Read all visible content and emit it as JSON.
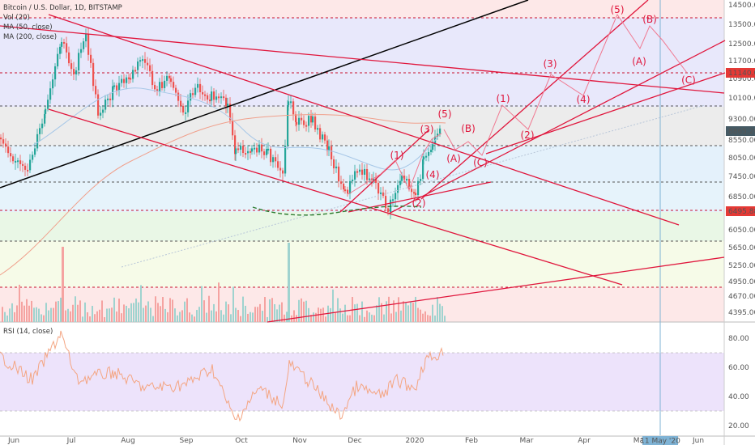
{
  "header": {
    "title": "Bitcoin / U.S. Dollar, 1D, BITSTAMP",
    "vol": "Vol (20)",
    "ma50": "MA (50, close)",
    "ma200": "MA (200, close)"
  },
  "rsi_label": "RSI (14, close)",
  "colors": {
    "candle_up": "#26a69a",
    "candle_down": "#ef5350",
    "annot": "#e0163c",
    "trend_black": "#000000",
    "rsi": "#f4a582"
  },
  "price_axis": [
    "14500.00",
    "13500.00",
    "12500.00",
    "11700.00",
    "10900.00",
    "10100.00",
    "9300.00",
    "8550.00",
    "8050.00",
    "7450.00",
    "6850.00",
    "6050.00",
    "5650.00",
    "5250.00",
    "4950.00",
    "4670.00",
    "4395.00"
  ],
  "price_tags": {
    "current": "8865.26",
    "upper": "11140.06",
    "lower": "6495.88"
  },
  "rsi_axis": [
    "80.00",
    "60.00",
    "40.00",
    "20.00"
  ],
  "time_axis": [
    "Jun",
    "Jul",
    "Aug",
    "Sep",
    "Oct",
    "Nov",
    "Dec",
    "2020",
    "Feb",
    "Mar",
    "Apr",
    "May",
    "Jun"
  ],
  "date_marker": "11 May '20",
  "waves": {
    "w1": "(1)",
    "w2": "(2)",
    "w3": "(3)",
    "w4": "(4)",
    "w5": "(5)",
    "A": "(A)",
    "B": "(B)",
    "C": "(C)"
  },
  "chart_data": {
    "type": "candlestick",
    "title": "Bitcoin / U.S. Dollar, 1D, BITSTAMP",
    "xlabel": "",
    "ylabel": "",
    "x_range": [
      "2019-06",
      "2020-06"
    ],
    "ylim": [
      4395,
      14500
    ],
    "log_scale": true,
    "last_price": 8865.26,
    "levels": [
      11140.06,
      6495.88
    ],
    "approx_close_path": [
      {
        "date": "2019-06-01",
        "close": 8550
      },
      {
        "date": "2019-06-26",
        "close": 12900
      },
      {
        "date": "2019-07-10",
        "close": 12000
      },
      {
        "date": "2019-07-20",
        "close": 10600
      },
      {
        "date": "2019-08-06",
        "close": 11800
      },
      {
        "date": "2019-08-29",
        "close": 9500
      },
      {
        "date": "2019-09-20",
        "close": 10100
      },
      {
        "date": "2019-09-25",
        "close": 8500
      },
      {
        "date": "2019-10-20",
        "close": 8200
      },
      {
        "date": "2019-10-26",
        "close": 9500
      },
      {
        "date": "2019-11-10",
        "close": 8800
      },
      {
        "date": "2019-11-25",
        "close": 7100
      },
      {
        "date": "2019-12-15",
        "close": 7000
      },
      {
        "date": "2019-12-18",
        "close": 6600
      },
      {
        "date": "2020-01-01",
        "close": 7200
      },
      {
        "date": "2020-01-14",
        "close": 8800
      },
      {
        "date": "2020-01-17",
        "close": 8865
      }
    ],
    "rsi": {
      "name": "RSI (14, close)",
      "ylim": [
        20,
        80
      ]
    }
  }
}
